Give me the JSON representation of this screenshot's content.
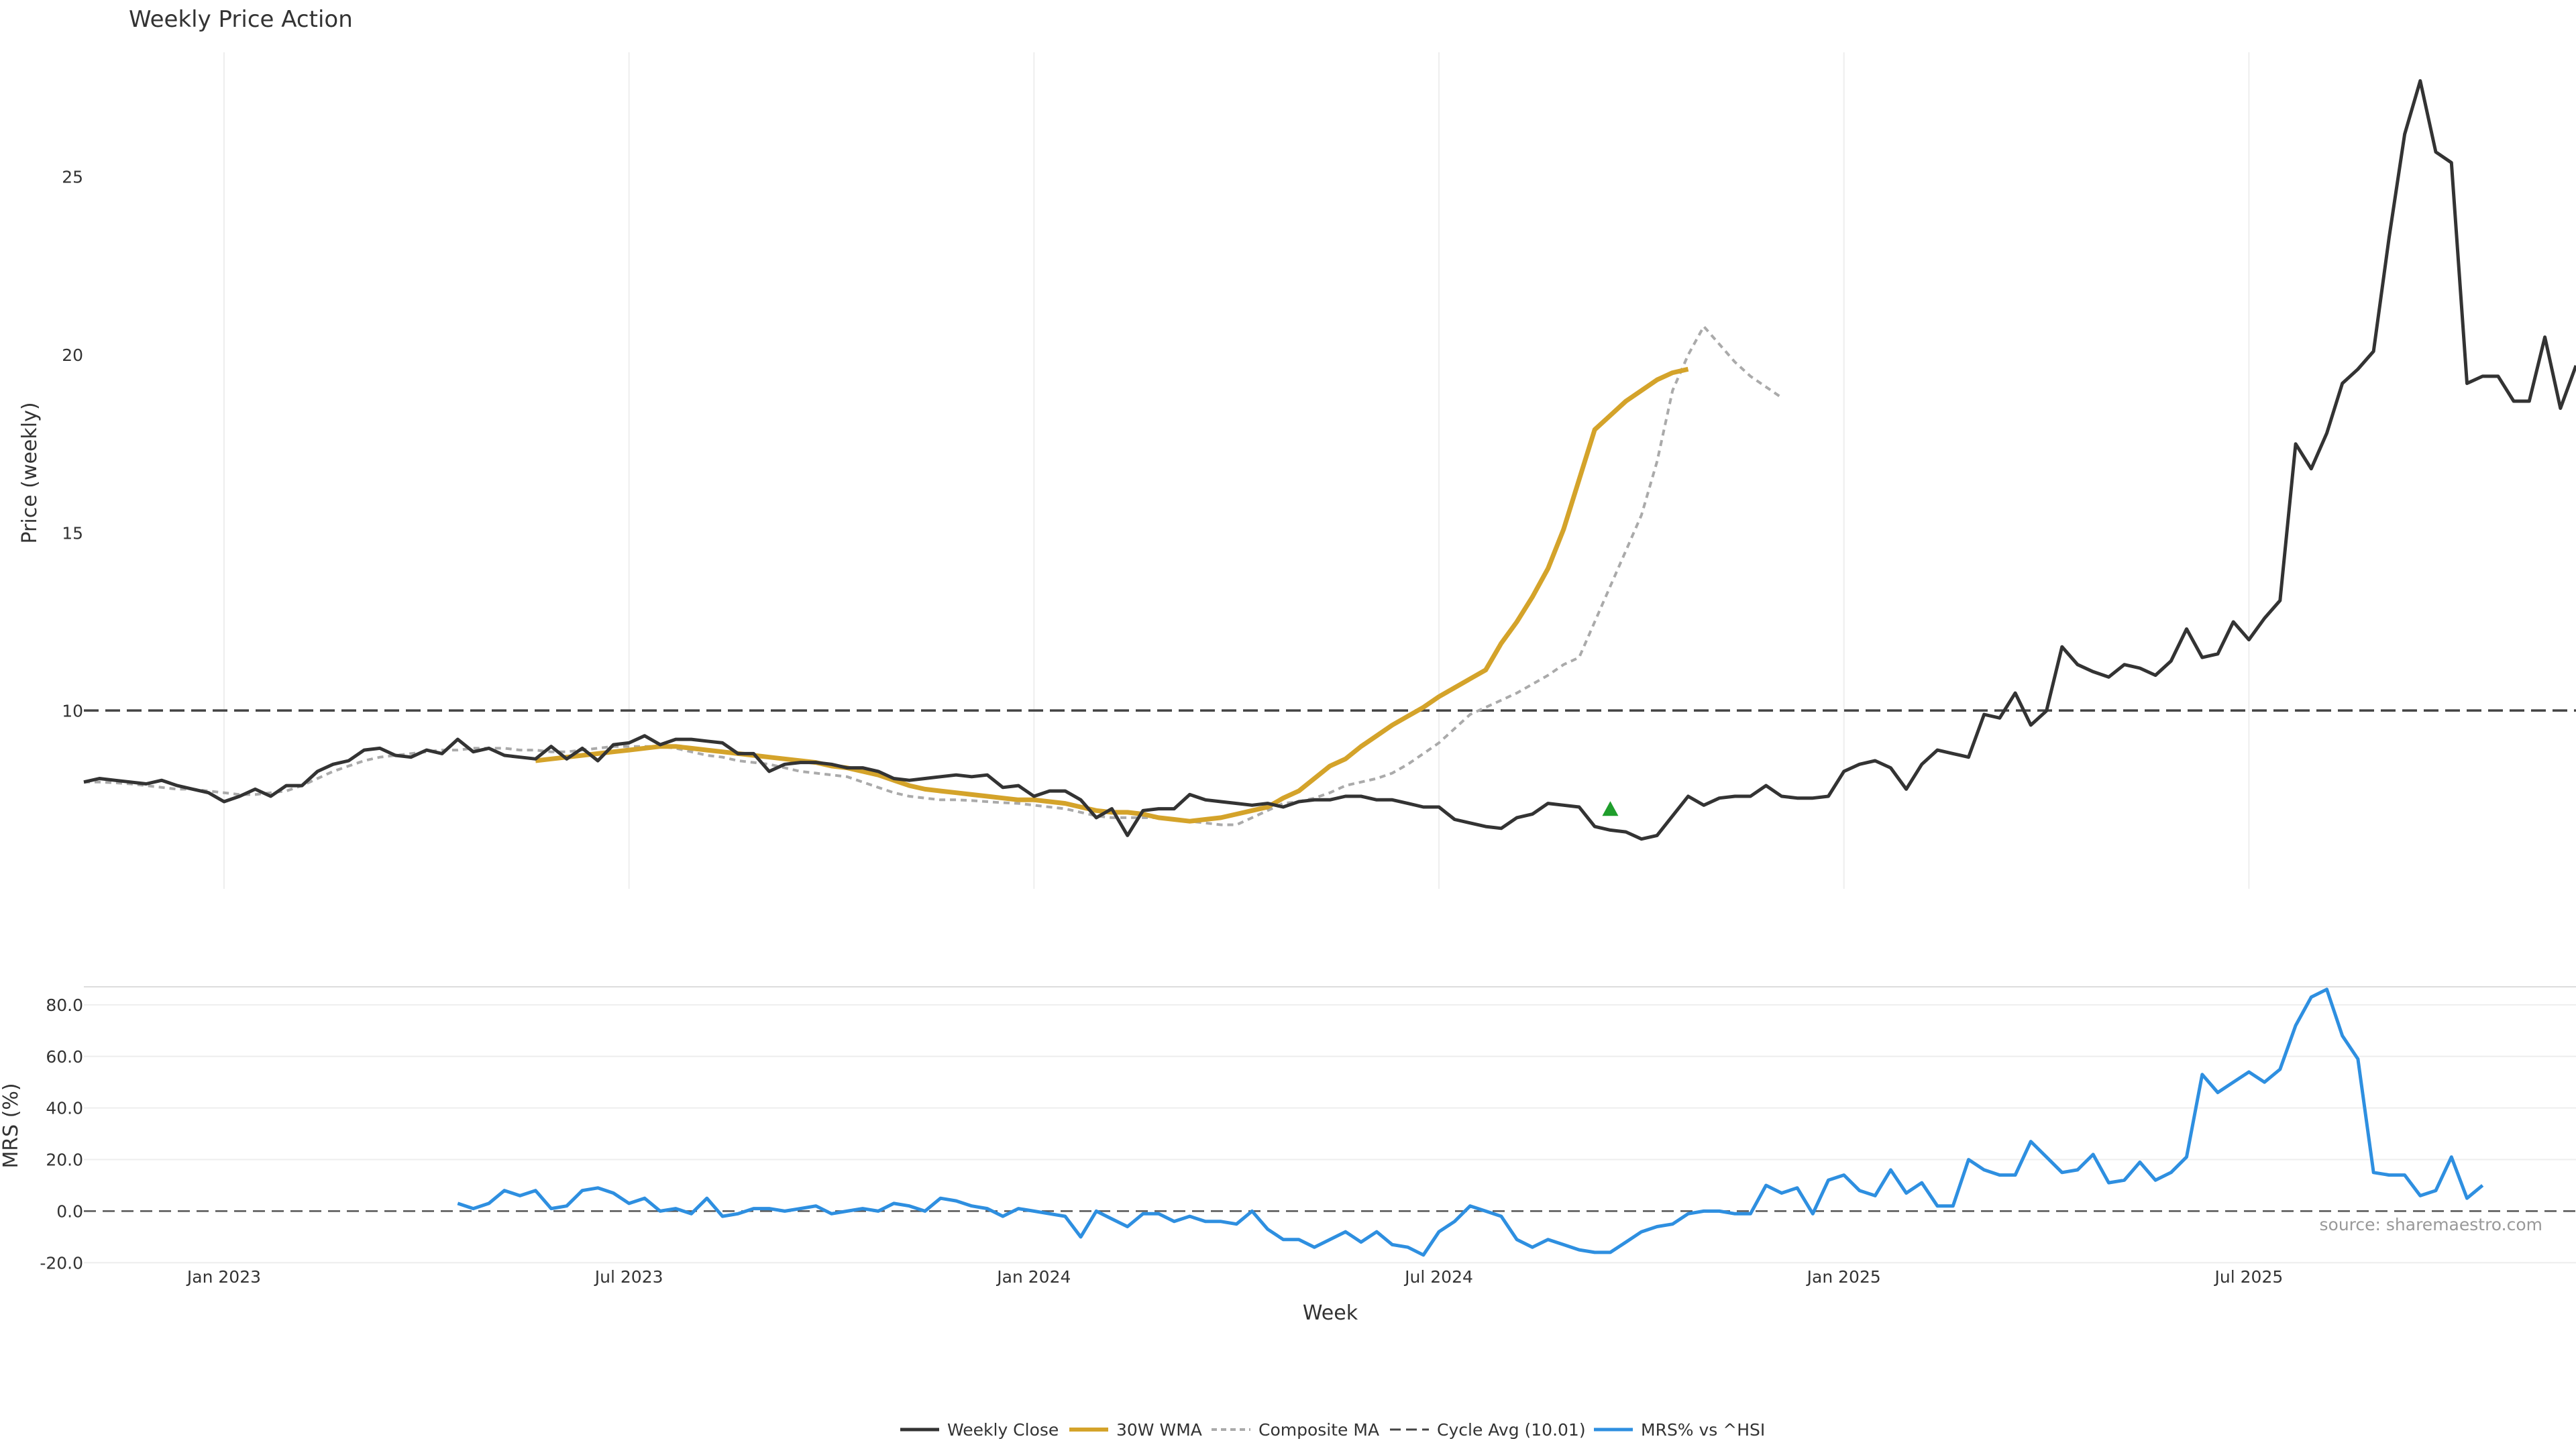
{
  "chart_data": {
    "type": "line",
    "title": "Weekly Price Action",
    "xlabel": "Week",
    "source": "source: sharemaestro.com",
    "x_ticks": [
      "Jan 2023",
      "Jul 2023",
      "Jan 2024",
      "Jul 2024",
      "Jan 2025",
      "Jul 2025"
    ],
    "legend_position": "bottom",
    "price_panel": {
      "ylabel": "Price (weekly)",
      "ylim": [
        5,
        28.5
      ],
      "yticks": [
        "10",
        "15",
        "20",
        "25"
      ],
      "grid": "vertical",
      "cycle_avg": 10.01,
      "signal_marker": {
        "week": 98,
        "value": 7.2
      },
      "series": [
        {
          "name": "Weekly Close",
          "color": "#333333",
          "start_week": 0,
          "values": [
            8.0,
            8.1,
            8.05,
            8.0,
            7.95,
            8.05,
            7.9,
            7.8,
            7.7,
            7.45,
            7.6,
            7.8,
            7.6,
            7.9,
            7.9,
            8.3,
            8.5,
            8.6,
            8.9,
            8.95,
            8.75,
            8.7,
            8.9,
            8.8,
            9.2,
            8.85,
            8.95,
            8.75,
            8.7,
            8.65,
            9.0,
            8.65,
            8.95,
            8.6,
            9.05,
            9.1,
            9.3,
            9.05,
            9.2,
            9.2,
            9.15,
            9.1,
            8.8,
            8.8,
            8.3,
            8.5,
            8.55,
            8.55,
            8.5,
            8.4,
            8.4,
            8.3,
            8.1,
            8.05,
            8.1,
            8.15,
            8.2,
            8.15,
            8.2,
            7.85,
            7.9,
            7.6,
            7.75,
            7.75,
            7.5,
            7.0,
            7.25,
            6.5,
            7.2,
            7.25,
            7.25,
            7.65,
            7.5,
            7.45,
            7.4,
            7.35,
            7.4,
            7.3,
            7.45,
            7.5,
            7.5,
            7.6,
            7.6,
            7.5,
            7.5,
            7.4,
            7.3,
            7.3,
            6.95,
            6.85,
            6.75,
            6.7,
            7.0,
            7.1,
            7.4,
            7.35,
            7.3,
            6.75,
            6.65,
            6.6,
            6.4,
            6.5,
            7.05,
            7.6,
            7.35,
            7.55,
            7.6,
            7.6,
            7.9,
            7.6,
            7.55,
            7.55,
            7.6,
            8.3,
            8.5,
            8.6,
            8.4,
            7.8,
            8.5,
            8.9,
            8.8,
            8.7,
            9.9,
            9.8,
            10.5,
            9.6,
            10.0,
            11.8,
            11.3,
            11.1,
            10.95,
            11.3,
            11.2,
            11.0,
            11.4,
            12.3,
            11.5,
            11.6,
            12.5,
            12.0,
            12.6,
            13.1,
            17.5,
            16.8,
            17.8,
            19.2,
            19.6,
            20.1,
            23.3,
            26.2,
            27.7,
            25.7,
            25.4,
            19.2,
            19.4,
            19.4,
            18.7,
            18.7,
            20.5,
            18.5,
            19.7
          ]
        },
        {
          "name": "30W WMA",
          "color": "#D4A32A",
          "start_week": 29,
          "values": [
            8.6,
            8.65,
            8.7,
            8.75,
            8.8,
            8.85,
            8.9,
            8.95,
            9.0,
            9.0,
            8.95,
            8.9,
            8.85,
            8.8,
            8.75,
            8.7,
            8.65,
            8.6,
            8.55,
            8.45,
            8.4,
            8.3,
            8.2,
            8.05,
            7.9,
            7.8,
            7.75,
            7.7,
            7.65,
            7.6,
            7.55,
            7.5,
            7.5,
            7.45,
            7.4,
            7.3,
            7.2,
            7.15,
            7.15,
            7.1,
            7.0,
            6.95,
            6.9,
            6.95,
            7.0,
            7.1,
            7.2,
            7.3,
            7.55,
            7.75,
            8.1,
            8.45,
            8.65,
            9.0,
            9.3,
            9.6,
            9.85,
            10.1,
            10.4,
            10.65,
            10.9,
            11.15,
            11.9,
            12.5,
            13.2,
            14.0,
            15.1,
            16.5,
            17.9,
            18.3,
            18.7,
            19.0,
            19.3,
            19.5,
            19.6
          ]
        },
        {
          "name": "Composite MA",
          "color": "#AAAAAA",
          "start_week": 0,
          "values": [
            8.0,
            8.0,
            7.98,
            7.95,
            7.9,
            7.85,
            7.8,
            7.8,
            7.75,
            7.7,
            7.65,
            7.65,
            7.7,
            7.75,
            7.9,
            8.1,
            8.3,
            8.45,
            8.6,
            8.7,
            8.75,
            8.8,
            8.85,
            8.9,
            8.9,
            8.95,
            8.95,
            8.95,
            8.9,
            8.9,
            8.85,
            8.85,
            8.9,
            8.95,
            9.0,
            9.0,
            9.0,
            9.0,
            8.95,
            8.85,
            8.75,
            8.7,
            8.6,
            8.55,
            8.5,
            8.4,
            8.3,
            8.25,
            8.2,
            8.15,
            8.0,
            7.85,
            7.7,
            7.6,
            7.55,
            7.5,
            7.5,
            7.48,
            7.45,
            7.42,
            7.4,
            7.35,
            7.3,
            7.25,
            7.15,
            7.05,
            7.0,
            7.0,
            7.0,
            7.0,
            6.95,
            6.9,
            6.85,
            6.8,
            6.8,
            7.0,
            7.2,
            7.4,
            7.45,
            7.55,
            7.7,
            7.9,
            8.0,
            8.1,
            8.25,
            8.5,
            8.8,
            9.1,
            9.5,
            9.9,
            10.1,
            10.3,
            10.5,
            10.75,
            11.0,
            11.3,
            11.5,
            12.5,
            13.5,
            14.5,
            15.5,
            17.0,
            19.0,
            20.0,
            20.8,
            20.3,
            19.8,
            19.4,
            19.1,
            18.8
          ]
        }
      ]
    },
    "mrs_panel": {
      "ylabel": "MRS (%)",
      "ylim": [
        -22,
        87
      ],
      "yticks": [
        "80.0",
        "60.0",
        "40.0",
        "20.0",
        "0.0",
        "-20.0"
      ],
      "grid": "horizontal",
      "zero_line": 0,
      "series": [
        {
          "name": "MRS% vs ^HSI",
          "color": "#2E8FE0",
          "start_week": 24,
          "values": [
            3,
            1,
            3,
            8,
            6,
            8,
            1,
            2,
            8,
            9,
            7,
            3,
            5,
            0,
            1,
            -1,
            5,
            -2,
            -1,
            1,
            1,
            0,
            1,
            2,
            -1,
            0,
            1,
            0,
            3,
            2,
            0,
            5,
            4,
            2,
            1,
            -2,
            1,
            0,
            -1,
            -2,
            -10,
            0,
            -3,
            -6,
            -1,
            -1,
            -4,
            -2,
            -4,
            -4,
            -5,
            0,
            -7,
            -11,
            -11,
            -14,
            -11,
            -8,
            -12,
            -8,
            -13,
            -14,
            -17,
            -8,
            -4,
            2,
            0,
            -2,
            -11,
            -14,
            -11,
            -13,
            -15,
            -16,
            -16,
            -12,
            -8,
            -6,
            -5,
            -1,
            0,
            0,
            -1,
            -1,
            10,
            7,
            9,
            -1,
            12,
            14,
            8,
            6,
            16,
            7,
            11,
            2,
            2,
            20,
            16,
            14,
            14,
            27,
            21,
            15,
            16,
            22,
            11,
            12,
            19,
            12,
            15,
            21,
            53,
            46,
            50,
            54,
            50,
            55,
            72,
            83,
            86,
            68,
            59,
            15,
            14,
            14,
            6,
            8,
            21,
            5,
            10
          ]
        }
      ]
    }
  }
}
